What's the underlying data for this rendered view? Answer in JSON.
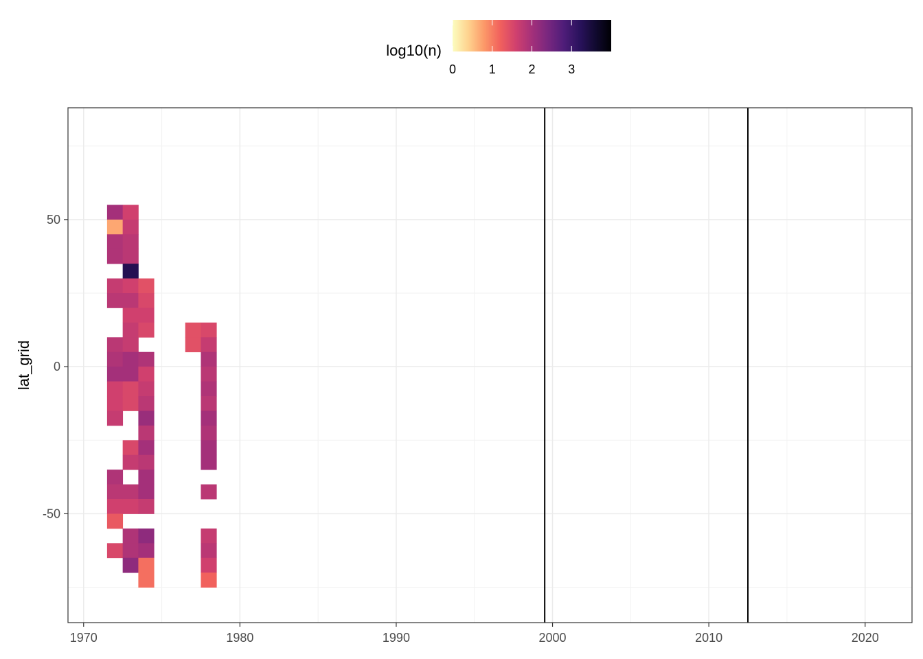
{
  "chart_data": {
    "type": "heatmap",
    "title": "",
    "xlabel": "",
    "ylabel": "lat_grid",
    "xlim": [
      1969,
      2023
    ],
    "ylim": [
      -87,
      88
    ],
    "x_ticks": [
      1970,
      1980,
      1990,
      2000,
      2010,
      2020
    ],
    "y_ticks": [
      -50,
      0,
      50
    ],
    "x_tick_labels": [
      "1970",
      "1980",
      "1990",
      "2000",
      "2010",
      "2020"
    ],
    "y_tick_labels": [
      "-50",
      "0",
      "50"
    ],
    "grid": true,
    "colorscale": "magma (reversed)",
    "legend": {
      "title": "log10(n)",
      "placement": "top",
      "range": [
        0,
        4
      ],
      "ticks": [
        0,
        1,
        2,
        3
      ],
      "tick_labels": [
        "0",
        "1",
        "2",
        "3"
      ]
    },
    "vertical_lines": [
      1999.5,
      2012.5
    ],
    "cell_size": {
      "year": 1,
      "lat": 5
    },
    "lat_rows": [
      77.5,
      72.5,
      67.5,
      62.5,
      57.5,
      52.5,
      47.5,
      42.5,
      37.5,
      32.5,
      27.5,
      22.5,
      17.5,
      12.5,
      7.5,
      2.5,
      -2.5,
      -7.5,
      -12.5,
      -17.5,
      -22.5,
      -27.5,
      -32.5,
      -37.5,
      -42.5,
      -47.5,
      -52.5,
      -57.5,
      -62.5,
      -67.5,
      -72.5,
      -77.5
    ],
    "columns": [
      {
        "year": 1972,
        "values": [
          null,
          null,
          null,
          null,
          null,
          2.0,
          0.7,
          1.9,
          1.9,
          null,
          1.7,
          1.8,
          null,
          null,
          1.8,
          1.9,
          2.0,
          1.6,
          1.6,
          1.7,
          null,
          null,
          null,
          1.9,
          1.8,
          1.6,
          1.3,
          null,
          1.5,
          null,
          null,
          null
        ]
      },
      {
        "year": 1973,
        "values": [
          null,
          null,
          null,
          null,
          null,
          1.6,
          1.7,
          1.8,
          1.8,
          3.3,
          1.6,
          1.8,
          1.6,
          1.7,
          1.7,
          2.0,
          2.0,
          1.5,
          1.5,
          null,
          null,
          1.5,
          1.7,
          null,
          1.8,
          1.6,
          null,
          1.9,
          1.9,
          2.2,
          null,
          null
        ]
      },
      {
        "year": 1974,
        "values": [
          null,
          null,
          null,
          null,
          null,
          null,
          null,
          null,
          null,
          null,
          1.4,
          1.5,
          1.6,
          1.5,
          null,
          1.9,
          1.6,
          1.7,
          1.8,
          2.1,
          1.8,
          2.0,
          1.8,
          2.0,
          2.0,
          1.7,
          null,
          2.2,
          2.0,
          1.1,
          1.1,
          null
        ]
      },
      {
        "year": 1977,
        "values": [
          null,
          null,
          null,
          null,
          null,
          null,
          null,
          null,
          null,
          null,
          null,
          null,
          null,
          1.4,
          1.4,
          null,
          null,
          null,
          null,
          null,
          null,
          null,
          null,
          null,
          null,
          null,
          null,
          null,
          null,
          null,
          null,
          null
        ]
      },
      {
        "year": 1978,
        "values": [
          null,
          null,
          null,
          null,
          null,
          null,
          null,
          null,
          null,
          null,
          null,
          null,
          null,
          1.5,
          1.7,
          1.9,
          1.8,
          1.9,
          1.8,
          2.0,
          1.9,
          2.0,
          2.0,
          null,
          1.8,
          null,
          null,
          1.7,
          1.8,
          1.6,
          1.2,
          null
        ]
      },
      {
        "year": 1981,
        "values": [
          null,
          null,
          null,
          null,
          null,
          null,
          null,
          null,
          null,
          null,
          null,
          null,
          null,
          null,
          null,
          null,
          null,
          null,
          null,
          null,
          null,
          null,
          null,
          null,
          null,
          null,
          null,
          null,
          null,
          null,
          null,
          null
        ]
      }
    ]
  }
}
